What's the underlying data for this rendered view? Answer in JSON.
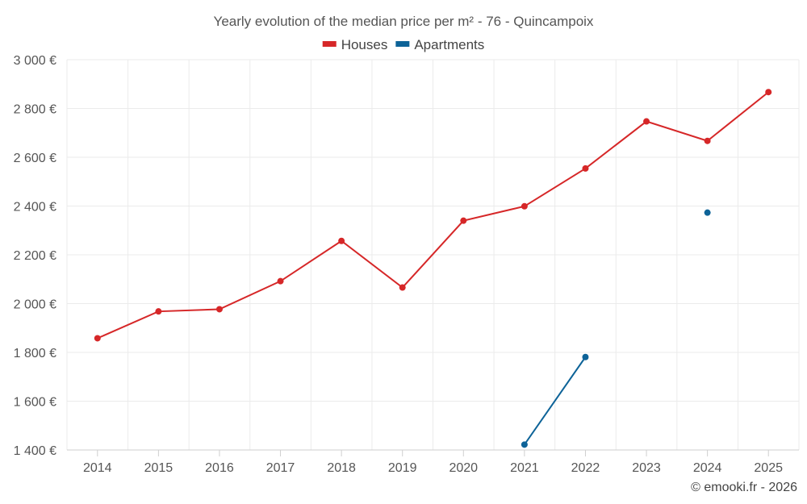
{
  "chart_data": {
    "type": "line",
    "title": "Yearly evolution of the median price per m² - 76 - Quincampoix",
    "xlabel": "",
    "ylabel": "",
    "categories": [
      "2014",
      "2015",
      "2016",
      "2017",
      "2018",
      "2019",
      "2020",
      "2021",
      "2022",
      "2023",
      "2024",
      "2025"
    ],
    "ylim": [
      1400,
      3000
    ],
    "yticks": [
      1400,
      1600,
      1800,
      2000,
      2200,
      2400,
      2600,
      2800,
      3000
    ],
    "ytick_labels": [
      "1 400 €",
      "1 600 €",
      "1 800 €",
      "2 000 €",
      "2 200 €",
      "2 400 €",
      "2 600 €",
      "2 800 €",
      "3 000 €"
    ],
    "grid": true,
    "legend_position": "top-center",
    "series": [
      {
        "name": "Houses",
        "color": "#d62728",
        "values": [
          1858,
          1968,
          1977,
          2092,
          2257,
          2066,
          2340,
          2399,
          2554,
          2747,
          2667,
          2867
        ]
      },
      {
        "name": "Apartments",
        "color": "#0d6398",
        "values": [
          null,
          null,
          null,
          null,
          null,
          null,
          null,
          1422,
          1781,
          null,
          2373,
          null
        ]
      }
    ],
    "credit": "© emooki.fr - 2026"
  }
}
